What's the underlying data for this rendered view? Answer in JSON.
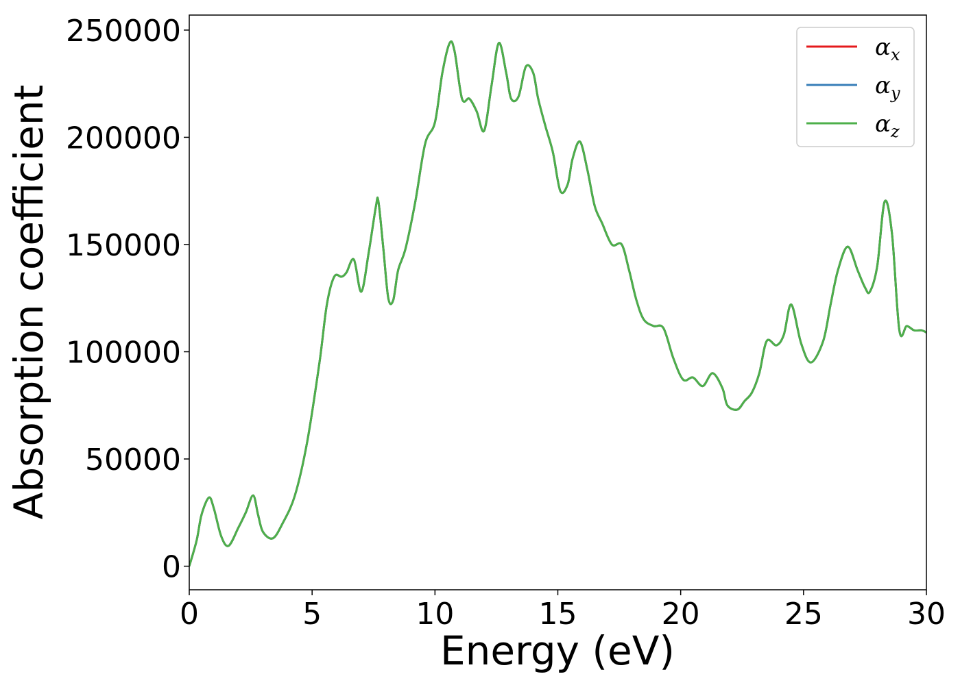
{
  "chart_data": {
    "type": "line",
    "xlabel": "Energy (eV)",
    "ylabel": "Absorption coefficient",
    "xlim": [
      0,
      30
    ],
    "ylim": [
      -11000,
      257000
    ],
    "xticks": [
      0,
      5,
      10,
      15,
      20,
      25,
      30
    ],
    "yticks": [
      0,
      50000,
      100000,
      150000,
      200000,
      250000
    ],
    "grid": false,
    "legend_position": "top-right",
    "series": [
      {
        "name": "α",
        "subscript": "x",
        "color": "#e41a1c",
        "shared_values": "x_y"
      },
      {
        "name": "α",
        "subscript": "y",
        "color": "#377eb8",
        "shared_values": "x_y"
      },
      {
        "name": "α",
        "subscript": "z",
        "color": "#4daf4a",
        "shared_values": "x_y"
      }
    ],
    "x": [
      0,
      0.3,
      0.5,
      0.8,
      1.0,
      1.3,
      1.6,
      2.0,
      2.3,
      2.6,
      2.8,
      3.0,
      3.4,
      3.8,
      4.3,
      4.8,
      5.3,
      5.6,
      5.9,
      6.2,
      6.4,
      6.7,
      7.0,
      7.3,
      7.6,
      7.7,
      7.9,
      8.1,
      8.3,
      8.5,
      8.8,
      9.2,
      9.6,
      10.0,
      10.3,
      10.6,
      10.8,
      11.1,
      11.4,
      11.7,
      12.0,
      12.3,
      12.6,
      12.9,
      13.1,
      13.4,
      13.7,
      14.0,
      14.2,
      14.5,
      14.8,
      15.1,
      15.4,
      15.6,
      15.9,
      16.2,
      16.5,
      16.8,
      17.2,
      17.6,
      17.9,
      18.2,
      18.5,
      18.9,
      19.3,
      19.7,
      20.1,
      20.5,
      20.9,
      21.3,
      21.7,
      21.9,
      22.3,
      22.6,
      22.9,
      23.2,
      23.5,
      23.9,
      24.2,
      24.5,
      24.9,
      25.3,
      25.8,
      26.1,
      26.4,
      26.8,
      27.2,
      27.5,
      27.7,
      28.0,
      28.3,
      28.6,
      28.9,
      29.2,
      29.5,
      29.8,
      30.0
    ],
    "x_y": [
      0,
      12000,
      24000,
      32000,
      27000,
      14000,
      9500,
      18000,
      25000,
      33000,
      24000,
      16000,
      13000,
      20000,
      33000,
      58000,
      95000,
      122000,
      135000,
      135000,
      137000,
      143000,
      128000,
      146000,
      168000,
      170000,
      148000,
      125000,
      124000,
      138000,
      148000,
      170000,
      197000,
      207000,
      230000,
      244000,
      240000,
      218000,
      218000,
      212000,
      203000,
      224000,
      244000,
      230000,
      218000,
      219000,
      233000,
      230000,
      218000,
      205000,
      193000,
      175000,
      178000,
      190000,
      198000,
      185000,
      168000,
      160000,
      150000,
      150000,
      138000,
      124000,
      115000,
      112000,
      111000,
      97000,
      87000,
      88000,
      84000,
      90000,
      83000,
      75000,
      73000,
      77000,
      81000,
      90000,
      105000,
      103000,
      108000,
      122000,
      104000,
      95000,
      105000,
      122000,
      138000,
      149000,
      138000,
      130000,
      128000,
      140000,
      170000,
      155000,
      110000,
      112000,
      110000,
      110000,
      109000
    ]
  }
}
